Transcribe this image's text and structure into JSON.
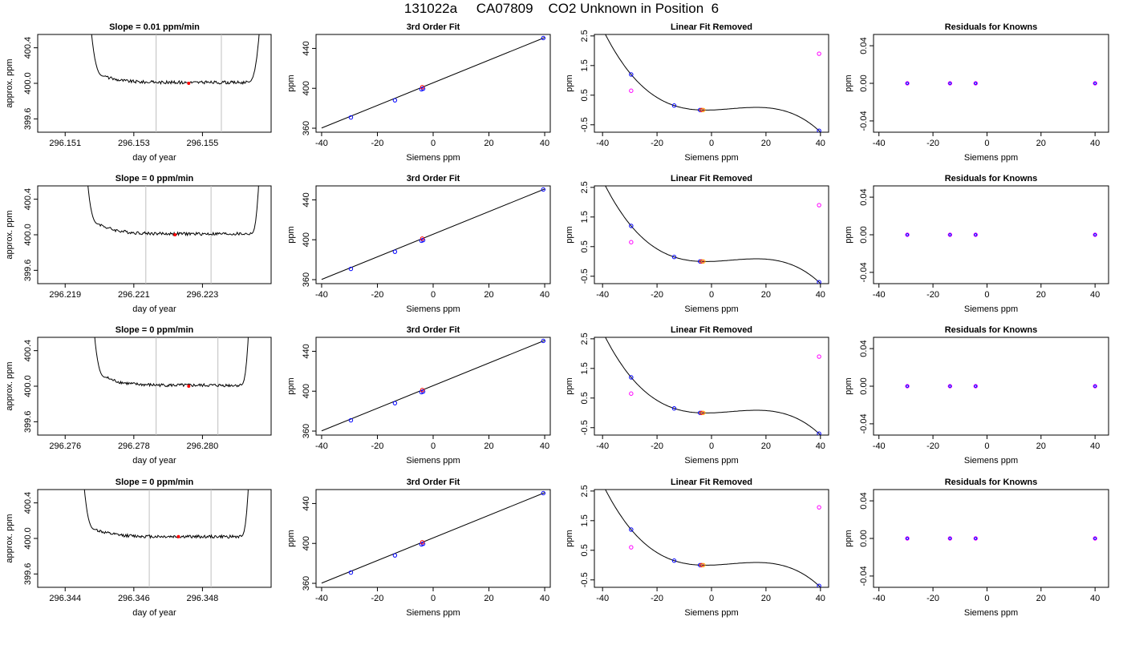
{
  "page": {
    "title": "131022a     CA07809    CO2 Unknown in Position  6"
  },
  "colors": {
    "axis": "#000000",
    "trace": "#000000",
    "window_lines": "#bebebe",
    "known_points": "#0000ff",
    "unknown_points": "#ff00ff",
    "sample_points": "#ff0000",
    "highlight_points": "#ffa500"
  },
  "chart_data": [
    {
      "type": "line",
      "row": 1,
      "panel": "time",
      "title": "Slope =  0.01  ppm/min",
      "xlabel": "day of year",
      "ylabel": "approx. ppm",
      "xlim": [
        296.1502,
        296.157
      ],
      "ylim": [
        399.45,
        400.55
      ],
      "xticks": [
        "296.151",
        "296.153",
        "296.155"
      ],
      "yticks": [
        "399.6",
        "400.0",
        "400.4"
      ],
      "window": [
        296.15365,
        296.15555
      ],
      "trace": {
        "rise_start": 296.15165,
        "plateau_start": 296.15215,
        "plateau_end": 296.1563,
        "rise_end": 296.15675,
        "level": 400.01,
        "spike": 400.08
      },
      "sample_point": [
        296.1546,
        400.0
      ]
    },
    {
      "type": "scatter",
      "row": 1,
      "panel": "fit",
      "title": "3rd Order Fit",
      "xlabel": "Siemens ppm",
      "ylabel": "ppm",
      "xlim": [
        -42,
        42
      ],
      "ylim": [
        356,
        454
      ],
      "xticks": [
        "-40",
        "-20",
        "0",
        "20",
        "40"
      ],
      "yticks": [
        "360",
        "400",
        "440"
      ],
      "line": {
        "x": [
          -40,
          40
        ],
        "y": [
          360.2,
          450.9
        ]
      },
      "points": {
        "x": [
          -29.5,
          -13.7,
          -4.2,
          -3.6,
          39.5
        ],
        "y": [
          370.8,
          388.0,
          399.0,
          399.6,
          450.4
        ]
      },
      "sample_x": -3.9
    },
    {
      "type": "scatter",
      "row": 1,
      "panel": "linear_removed",
      "title": "Linear Fit Removed",
      "xlabel": "Siemens ppm",
      "ylabel": "ppm",
      "xlim": [
        -43,
        43
      ],
      "ylim": [
        -0.75,
        2.55
      ],
      "xticks": [
        "-40",
        "-20",
        "0",
        "20",
        "40"
      ],
      "yticks": [
        "-0.5",
        "0.5",
        "1.5",
        "2.5"
      ],
      "known": {
        "x": [
          -29.5,
          -13.7,
          -4.2,
          39.5
        ],
        "y": [
          1.2,
          0.15,
          0.0,
          -0.7
        ]
      },
      "unknown": {
        "x": [
          -29.5,
          39.5
        ],
        "y": [
          0.65,
          1.9
        ]
      },
      "sample": {
        "x": [
          -3.6
        ],
        "y": [
          0.0
        ]
      }
    },
    {
      "type": "scatter",
      "row": 1,
      "panel": "residuals",
      "title": "Residuals for Knowns",
      "xlabel": "Siemens ppm",
      "ylabel": "ppm",
      "xlim": [
        -42,
        45
      ],
      "ylim": [
        -0.052,
        0.052
      ],
      "xticks": [
        "-40",
        "-20",
        "0",
        "20",
        "40"
      ],
      "yticks": [
        "-0.04",
        "0.00",
        "0.04"
      ],
      "x": [
        -29.5,
        -13.7,
        -4.2,
        40.0
      ],
      "y": [
        0.0,
        0.0,
        0.0,
        0.0
      ]
    },
    {
      "type": "line",
      "row": 2,
      "panel": "time",
      "title": "Slope =  0  ppm/min",
      "xlabel": "day of year",
      "ylabel": "approx. ppm",
      "xlim": [
        296.2182,
        296.225
      ],
      "ylim": [
        399.45,
        400.55
      ],
      "xticks": [
        "296.219",
        "296.221",
        "296.223"
      ],
      "yticks": [
        "399.6",
        "400.0",
        "400.4"
      ],
      "window": [
        296.22135,
        296.22325
      ],
      "trace": {
        "rise_start": 296.21955,
        "plateau_start": 296.22,
        "plateau_end": 296.2244,
        "rise_end": 296.2247,
        "level": 400.01,
        "spike": 400.12
      },
      "sample_point": [
        296.2222,
        400.0
      ]
    },
    {
      "type": "scatter",
      "row": 2,
      "panel": "fit",
      "title": "3rd Order Fit",
      "xlabel": "Siemens ppm",
      "ylabel": "ppm",
      "xlim": [
        -42,
        42
      ],
      "ylim": [
        356,
        454
      ],
      "xticks": [
        "-40",
        "-20",
        "0",
        "20",
        "40"
      ],
      "yticks": [
        "360",
        "400",
        "440"
      ],
      "line": {
        "x": [
          -40,
          40
        ],
        "y": [
          360.2,
          450.9
        ]
      },
      "points": {
        "x": [
          -29.5,
          -13.7,
          -4.2,
          -3.6,
          39.5
        ],
        "y": [
          370.8,
          388.0,
          399.0,
          399.6,
          450.4
        ]
      },
      "sample_x": -3.9
    },
    {
      "type": "scatter",
      "row": 2,
      "panel": "linear_removed",
      "title": "Linear Fit Removed",
      "xlabel": "Siemens ppm",
      "ylabel": "ppm",
      "xlim": [
        -43,
        43
      ],
      "ylim": [
        -0.75,
        2.55
      ],
      "xticks": [
        "-40",
        "-20",
        "0",
        "20",
        "40"
      ],
      "yticks": [
        "-0.5",
        "0.5",
        "1.5",
        "2.5"
      ],
      "known": {
        "x": [
          -29.5,
          -13.7,
          -4.2,
          39.5
        ],
        "y": [
          1.2,
          0.15,
          0.0,
          -0.7
        ]
      },
      "unknown": {
        "x": [
          -29.5,
          39.5
        ],
        "y": [
          0.65,
          1.9
        ]
      },
      "sample": {
        "x": [
          -3.6
        ],
        "y": [
          0.0
        ]
      }
    },
    {
      "type": "scatter",
      "row": 2,
      "panel": "residuals",
      "title": "Residuals for Knowns",
      "xlabel": "Siemens ppm",
      "ylabel": "ppm",
      "xlim": [
        -42,
        45
      ],
      "ylim": [
        -0.052,
        0.052
      ],
      "xticks": [
        "-40",
        "-20",
        "0",
        "20",
        "40"
      ],
      "yticks": [
        "-0.04",
        "0.00",
        "0.04"
      ],
      "x": [
        -29.5,
        -13.7,
        -4.2,
        40.0
      ],
      "y": [
        0.0,
        0.0,
        0.0,
        0.0
      ]
    },
    {
      "type": "line",
      "row": 3,
      "panel": "time",
      "title": "Slope =  0  ppm/min",
      "xlabel": "day of year",
      "ylabel": "approx. ppm",
      "xlim": [
        296.2752,
        296.282
      ],
      "ylim": [
        399.45,
        400.55
      ],
      "xticks": [
        "296.276",
        "296.278",
        "296.280"
      ],
      "yticks": [
        "399.6",
        "400.0",
        "400.4"
      ],
      "window": [
        296.27865,
        296.28045
      ],
      "trace": {
        "rise_start": 296.27675,
        "plateau_start": 296.2772,
        "plateau_end": 296.2811,
        "rise_end": 296.2814,
        "level": 400.01,
        "spike": 400.1
      },
      "sample_point": [
        296.2796,
        400.0
      ]
    },
    {
      "type": "scatter",
      "row": 3,
      "panel": "fit",
      "title": "3rd Order Fit",
      "xlabel": "Siemens ppm",
      "ylabel": "ppm",
      "xlim": [
        -42,
        42
      ],
      "ylim": [
        356,
        454
      ],
      "xticks": [
        "-40",
        "-20",
        "0",
        "20",
        "40"
      ],
      "yticks": [
        "360",
        "400",
        "440"
      ],
      "line": {
        "x": [
          -40,
          40
        ],
        "y": [
          360.2,
          450.9
        ]
      },
      "points": {
        "x": [
          -29.5,
          -13.7,
          -4.2,
          -3.6,
          39.5
        ],
        "y": [
          370.8,
          388.0,
          399.0,
          399.6,
          450.4
        ]
      },
      "sample_x": -3.9
    },
    {
      "type": "scatter",
      "row": 3,
      "panel": "linear_removed",
      "title": "Linear Fit Removed",
      "xlabel": "Siemens ppm",
      "ylabel": "ppm",
      "xlim": [
        -43,
        43
      ],
      "ylim": [
        -0.75,
        2.55
      ],
      "xticks": [
        "-40",
        "-20",
        "0",
        "20",
        "40"
      ],
      "yticks": [
        "-0.5",
        "0.5",
        "1.5",
        "2.5"
      ],
      "known": {
        "x": [
          -29.5,
          -13.7,
          -4.2,
          39.5
        ],
        "y": [
          1.2,
          0.15,
          0.0,
          -0.7
        ]
      },
      "unknown": {
        "x": [
          -29.5,
          39.5
        ],
        "y": [
          0.65,
          1.9
        ]
      },
      "sample": {
        "x": [
          -3.6
        ],
        "y": [
          0.0
        ]
      }
    },
    {
      "type": "scatter",
      "row": 3,
      "panel": "residuals",
      "title": "Residuals for Knowns",
      "xlabel": "Siemens ppm",
      "ylabel": "ppm",
      "xlim": [
        -42,
        45
      ],
      "ylim": [
        -0.052,
        0.052
      ],
      "xticks": [
        "-40",
        "-20",
        "0",
        "20",
        "40"
      ],
      "yticks": [
        "-0.04",
        "0.00",
        "0.04"
      ],
      "x": [
        -29.5,
        -13.7,
        -4.2,
        40.0
      ],
      "y": [
        0.0,
        0.0,
        0.0,
        0.0
      ]
    },
    {
      "type": "line",
      "row": 4,
      "panel": "time",
      "title": "Slope =  0  ppm/min",
      "xlabel": "day of year",
      "ylabel": "approx. ppm",
      "xlim": [
        296.3432,
        296.35
      ],
      "ylim": [
        399.45,
        400.55
      ],
      "xticks": [
        "296.344",
        "296.346",
        "296.348"
      ],
      "yticks": [
        "399.6",
        "400.0",
        "400.4"
      ],
      "window": [
        296.34645,
        296.34825
      ],
      "trace": {
        "rise_start": 296.34445,
        "plateau_start": 296.3449,
        "plateau_end": 296.3491,
        "rise_end": 296.3494,
        "level": 400.02,
        "spike": 400.1
      },
      "sample_point": [
        296.3473,
        400.02
      ]
    },
    {
      "type": "scatter",
      "row": 4,
      "panel": "fit",
      "title": "3rd Order Fit",
      "xlabel": "Siemens ppm",
      "ylabel": "ppm",
      "xlim": [
        -42,
        42
      ],
      "ylim": [
        356,
        454
      ],
      "xticks": [
        "-40",
        "-20",
        "0",
        "20",
        "40"
      ],
      "yticks": [
        "360",
        "400",
        "440"
      ],
      "line": {
        "x": [
          -40,
          40
        ],
        "y": [
          360.2,
          450.9
        ]
      },
      "points": {
        "x": [
          -29.5,
          -13.7,
          -4.2,
          -3.6,
          39.5
        ],
        "y": [
          370.8,
          388.0,
          399.0,
          399.6,
          450.4
        ]
      },
      "sample_x": -3.9
    },
    {
      "type": "scatter",
      "row": 4,
      "panel": "linear_removed",
      "title": "Linear Fit Removed",
      "xlabel": "Siemens ppm",
      "ylabel": "ppm",
      "xlim": [
        -43,
        43
      ],
      "ylim": [
        -0.75,
        2.55
      ],
      "xticks": [
        "-40",
        "-20",
        "0",
        "20",
        "40"
      ],
      "yticks": [
        "-0.5",
        "0.5",
        "1.5",
        "2.5"
      ],
      "known": {
        "x": [
          -29.5,
          -13.7,
          -4.2,
          39.5
        ],
        "y": [
          1.2,
          0.15,
          0.0,
          -0.7
        ]
      },
      "unknown": {
        "x": [
          -29.5,
          39.5
        ],
        "y": [
          0.6,
          1.95
        ]
      },
      "sample": {
        "x": [
          -3.6
        ],
        "y": [
          0.0
        ]
      }
    },
    {
      "type": "scatter",
      "row": 4,
      "panel": "residuals",
      "title": "Residuals for Knowns",
      "xlabel": "Siemens ppm",
      "ylabel": "ppm",
      "xlim": [
        -42,
        45
      ],
      "ylim": [
        -0.052,
        0.052
      ],
      "xticks": [
        "-40",
        "-20",
        "0",
        "20",
        "40"
      ],
      "yticks": [
        "-0.04",
        "0.00",
        "0.04"
      ],
      "x": [
        -29.5,
        -13.7,
        -4.2,
        40.0
      ],
      "y": [
        0.0,
        0.0,
        0.0,
        0.0
      ]
    }
  ]
}
